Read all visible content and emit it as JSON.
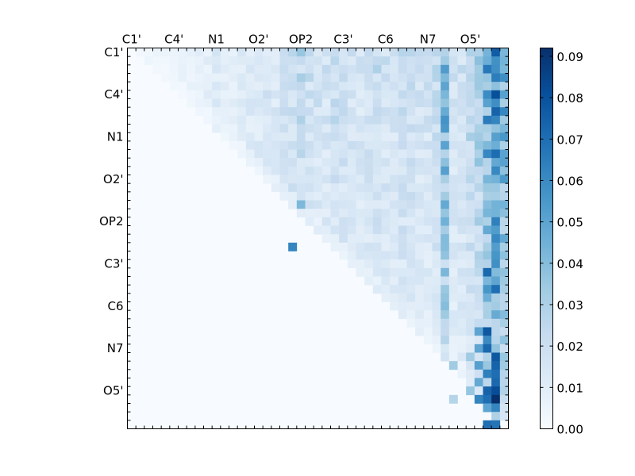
{
  "chart_data": {
    "type": "heatmap",
    "title": "",
    "xlabel": "",
    "ylabel": "",
    "x_tick_labels": [
      "C1'",
      "C4'",
      "N1",
      "O2'",
      "OP2",
      "C3'",
      "C6",
      "N7",
      "O5'"
    ],
    "y_tick_labels": [
      "C1'",
      "C4'",
      "N1",
      "O2'",
      "OP2",
      "C3'",
      "C6",
      "N7",
      "O5'"
    ],
    "matrix_size": 45,
    "tick_every": 5,
    "upper_triangular": true,
    "colormap": [
      "#f7fbff",
      "#deebf7",
      "#c6dbef",
      "#9ecae1",
      "#6baed6",
      "#4292c6",
      "#2171b5",
      "#08519c",
      "#08306b"
    ],
    "colorbar": {
      "range": [
        0.0,
        0.092
      ],
      "ticks": [
        0.0,
        0.01,
        0.02,
        0.03,
        0.04,
        0.05,
        0.06,
        0.07,
        0.08,
        0.09
      ],
      "tick_labels": [
        "0.00",
        "0.01",
        "0.02",
        "0.03",
        "0.04",
        "0.05",
        "0.06",
        "0.07",
        "0.08",
        "0.09"
      ]
    },
    "column_profile": [
      0,
      0.004,
      0.006,
      0.005,
      0.004,
      0.005,
      0.006,
      0.006,
      0.008,
      0.009,
      0.012,
      0.01,
      0.009,
      0.011,
      0.013,
      0.014,
      0.016,
      0.015,
      0.019,
      0.02,
      0.024,
      0.021,
      0.019,
      0.018,
      0.022,
      0.02,
      0.018,
      0.017,
      0.019,
      0.022,
      0.019,
      0.018,
      0.023,
      0.021,
      0.019,
      0.018,
      0.022,
      0.045,
      0.018,
      0.02,
      0.026,
      0.032,
      0.052,
      0.062,
      0.05
    ],
    "cells": [
      {
        "r": 23,
        "c": 19,
        "v": 0.062
      },
      {
        "r": 18,
        "c": 20,
        "v": 0.042
      },
      {
        "r": 0,
        "c": 20,
        "v": 0.036
      },
      {
        "r": 3,
        "c": 20,
        "v": 0.032
      },
      {
        "r": 1,
        "c": 42,
        "v": 0.046
      },
      {
        "r": 4,
        "c": 37,
        "v": 0.05
      },
      {
        "r": 9,
        "c": 37,
        "v": 0.055
      },
      {
        "r": 14,
        "c": 37,
        "v": 0.052
      },
      {
        "r": 18,
        "c": 37,
        "v": 0.048
      },
      {
        "r": 26,
        "c": 42,
        "v": 0.072
      },
      {
        "r": 24,
        "c": 43,
        "v": 0.056
      },
      {
        "r": 28,
        "c": 43,
        "v": 0.07
      },
      {
        "r": 28,
        "c": 42,
        "v": 0.056
      },
      {
        "r": 34,
        "c": 42,
        "v": 0.06
      },
      {
        "r": 35,
        "c": 42,
        "v": 0.072
      },
      {
        "r": 33,
        "c": 42,
        "v": 0.078
      },
      {
        "r": 36,
        "c": 43,
        "v": 0.078
      },
      {
        "r": 37,
        "c": 43,
        "v": 0.074
      },
      {
        "r": 38,
        "c": 42,
        "v": 0.064
      },
      {
        "r": 38,
        "c": 43,
        "v": 0.07
      },
      {
        "r": 39,
        "c": 43,
        "v": 0.072
      },
      {
        "r": 40,
        "c": 43,
        "v": 0.082
      },
      {
        "r": 40,
        "c": 42,
        "v": 0.074
      },
      {
        "r": 41,
        "c": 43,
        "v": 0.092
      },
      {
        "r": 41,
        "c": 42,
        "v": 0.07
      },
      {
        "r": 42,
        "c": 43,
        "v": 0.062
      },
      {
        "r": 42,
        "c": 42,
        "v": 0.05
      },
      {
        "r": 41,
        "c": 41,
        "v": 0.062
      },
      {
        "r": 39,
        "c": 41,
        "v": 0.048
      },
      {
        "r": 37,
        "c": 41,
        "v": 0.052
      },
      {
        "r": 35,
        "c": 41,
        "v": 0.05
      },
      {
        "r": 33,
        "c": 41,
        "v": 0.05
      },
      {
        "r": 44,
        "c": 42,
        "v": 0.07
      },
      {
        "r": 44,
        "c": 43,
        "v": 0.068
      },
      {
        "r": 43,
        "c": 43,
        "v": 0.03
      },
      {
        "r": 40,
        "c": 40,
        "v": 0.036
      },
      {
        "r": 36,
        "c": 40,
        "v": 0.034
      },
      {
        "r": 37,
        "c": 38,
        "v": 0.034
      },
      {
        "r": 41,
        "c": 38,
        "v": 0.028
      }
    ]
  }
}
